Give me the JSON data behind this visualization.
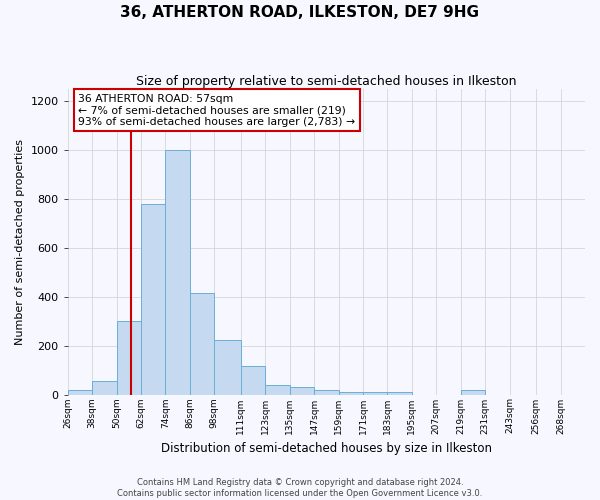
{
  "title": "36, ATHERTON ROAD, ILKESTON, DE7 9HG",
  "subtitle": "Size of property relative to semi-detached houses in Ilkeston",
  "xlabel": "Distribution of semi-detached houses by size in Ilkeston",
  "ylabel": "Number of semi-detached properties",
  "footer_line1": "Contains HM Land Registry data © Crown copyright and database right 2024.",
  "footer_line2": "Contains public sector information licensed under the Open Government Licence v3.0.",
  "annotation_title": "36 ATHERTON ROAD: 57sqm",
  "annotation_line1": "← 7% of semi-detached houses are smaller (219)",
  "annotation_line2": "93% of semi-detached houses are larger (2,783) →",
  "property_size": 57,
  "bar_labels": [
    "26sqm",
    "38sqm",
    "50sqm",
    "62sqm",
    "74sqm",
    "86sqm",
    "98sqm",
    "111sqm",
    "123sqm",
    "135sqm",
    "147sqm",
    "159sqm",
    "171sqm",
    "183sqm",
    "195sqm",
    "207sqm",
    "219sqm",
    "231sqm",
    "243sqm",
    "256sqm",
    "268sqm"
  ],
  "bar_edges": [
    26,
    38,
    50,
    62,
    74,
    86,
    98,
    111,
    123,
    135,
    147,
    159,
    171,
    183,
    195,
    207,
    219,
    231,
    243,
    256,
    268,
    280
  ],
  "bar_heights": [
    18,
    55,
    300,
    780,
    1000,
    415,
    225,
    115,
    38,
    32,
    20,
    12,
    10,
    10,
    0,
    0,
    18,
    0,
    0,
    0,
    0
  ],
  "bar_color": "#c5d9f0",
  "bar_edge_color": "#6baed6",
  "vline_color": "#cc0000",
  "vline_x": 57,
  "annotation_box_color": "#cc0000",
  "annotation_bg": "#ffffff",
  "grid_color": "#d0d0d0",
  "ylim": [
    0,
    1250
  ],
  "yticks": [
    0,
    200,
    400,
    600,
    800,
    1000,
    1200
  ],
  "background_color": "#f7f7ff",
  "title_fontsize": 11,
  "subtitle_fontsize": 9
}
